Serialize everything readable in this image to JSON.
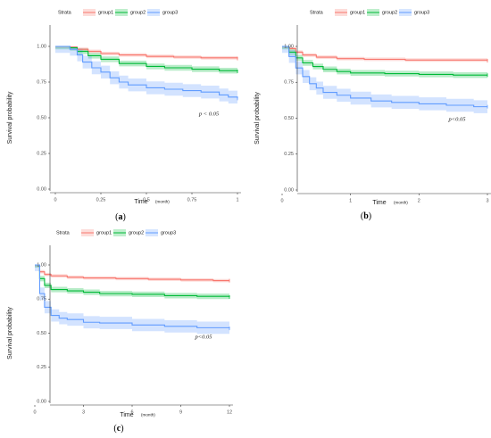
{
  "colors": {
    "group1": "#F8766D",
    "group2": "#00BA38",
    "group3": "#619CFF",
    "axis": "#333333"
  },
  "chart_data": [
    {
      "id": "a",
      "type": "line",
      "panel_label": "a",
      "xlabel": "Time",
      "xunit": "(month)",
      "ylabel": "Survival probability",
      "xlim": [
        0,
        1
      ],
      "ylim": [
        0,
        1
      ],
      "xticks": [
        0,
        0.25,
        0.5,
        0.75,
        1
      ],
      "xtick_labels": [
        "0",
        "0.25",
        "0.5",
        "0.75",
        "1"
      ],
      "yticks": [
        0,
        0.25,
        0.5,
        0.75,
        1
      ],
      "ytick_labels": [
        "0.00",
        "0.25",
        "0.50",
        "0.75",
        "1.00"
      ],
      "legend_title": "Strata",
      "legend_position": "top",
      "grid": false,
      "annotation": "p < 0.05",
      "series": [
        {
          "name": "group1",
          "color_key": "group1",
          "x": [
            0,
            0.08,
            0.12,
            0.18,
            0.25,
            0.35,
            0.5,
            0.65,
            0.8,
            1.0
          ],
          "y": [
            1.0,
            0.995,
            0.98,
            0.965,
            0.95,
            0.94,
            0.93,
            0.925,
            0.92,
            0.915
          ],
          "ci": 0.012
        },
        {
          "name": "group2",
          "color_key": "group2",
          "x": [
            0,
            0.08,
            0.12,
            0.18,
            0.25,
            0.35,
            0.5,
            0.6,
            0.75,
            0.9,
            1.0
          ],
          "y": [
            1.0,
            0.99,
            0.965,
            0.935,
            0.91,
            0.88,
            0.86,
            0.85,
            0.84,
            0.83,
            0.825
          ],
          "ci": 0.02
        },
        {
          "name": "group3",
          "color_key": "group3",
          "x": [
            0,
            0.08,
            0.12,
            0.15,
            0.2,
            0.25,
            0.3,
            0.35,
            0.4,
            0.5,
            0.6,
            0.7,
            0.8,
            0.9,
            0.95,
            1.0
          ],
          "y": [
            1.0,
            0.98,
            0.94,
            0.89,
            0.85,
            0.82,
            0.78,
            0.75,
            0.73,
            0.71,
            0.7,
            0.69,
            0.68,
            0.66,
            0.645,
            0.635
          ],
          "ci": 0.045
        }
      ]
    },
    {
      "id": "b",
      "type": "line",
      "panel_label": "b",
      "xlabel": "Time",
      "xunit": "(month)",
      "ylabel": "Survival probability",
      "xlim": [
        0,
        3
      ],
      "ylim": [
        0,
        1
      ],
      "xticks": [
        0,
        1,
        2,
        3
      ],
      "xtick_labels": [
        "0",
        "1",
        "2",
        "3"
      ],
      "yticks": [
        0,
        0.25,
        0.5,
        0.75,
        1
      ],
      "ytick_labels": [
        "0.00",
        "0.25",
        "0.50",
        "0.75",
        "1.00"
      ],
      "legend_title": "Strata",
      "legend_position": "top",
      "grid": false,
      "annotation": "p<0.05",
      "series": [
        {
          "name": "group1",
          "color_key": "group1",
          "x": [
            0,
            0.1,
            0.2,
            0.3,
            0.5,
            0.8,
            1.2,
            1.8,
            2.4,
            3.0
          ],
          "y": [
            1.0,
            0.985,
            0.96,
            0.94,
            0.925,
            0.915,
            0.91,
            0.905,
            0.905,
            0.9
          ],
          "ci": 0.012
        },
        {
          "name": "group2",
          "color_key": "group2",
          "x": [
            0,
            0.1,
            0.2,
            0.3,
            0.45,
            0.6,
            0.8,
            1.0,
            1.5,
            2.0,
            2.5,
            3.0
          ],
          "y": [
            1.0,
            0.96,
            0.92,
            0.885,
            0.86,
            0.84,
            0.825,
            0.815,
            0.81,
            0.805,
            0.8,
            0.8
          ],
          "ci": 0.02
        },
        {
          "name": "group3",
          "color_key": "group3",
          "x": [
            0,
            0.1,
            0.2,
            0.3,
            0.4,
            0.5,
            0.6,
            0.8,
            1.0,
            1.3,
            1.6,
            2.0,
            2.4,
            2.8,
            3.0
          ],
          "y": [
            1.0,
            0.93,
            0.85,
            0.79,
            0.74,
            0.71,
            0.68,
            0.66,
            0.64,
            0.62,
            0.61,
            0.6,
            0.59,
            0.58,
            0.58
          ],
          "ci": 0.045
        }
      ]
    },
    {
      "id": "c",
      "type": "line",
      "panel_label": "c",
      "xlabel": "Time",
      "xunit": "(month)",
      "ylabel": "Survival probability",
      "xlim": [
        0,
        12
      ],
      "ylim": [
        0,
        1
      ],
      "xticks": [
        0,
        3,
        6,
        9,
        12
      ],
      "xtick_labels": [
        "0",
        "3",
        "6",
        "9",
        "12"
      ],
      "yticks": [
        0,
        0.25,
        0.5,
        0.75,
        1
      ],
      "ytick_labels": [
        "0.00",
        "0.25",
        "0.50",
        "0.75",
        "1.00"
      ],
      "legend_title": "Strata",
      "legend_position": "top",
      "grid": false,
      "annotation": "p<0.05",
      "series": [
        {
          "name": "group1",
          "color_key": "group1",
          "x": [
            0,
            0.3,
            0.6,
            1.0,
            2.0,
            3.0,
            5.0,
            7.0,
            9.0,
            11.0,
            12.0
          ],
          "y": [
            1.0,
            0.95,
            0.93,
            0.92,
            0.91,
            0.905,
            0.9,
            0.895,
            0.89,
            0.885,
            0.885
          ],
          "ci": 0.012
        },
        {
          "name": "group2",
          "color_key": "group2",
          "x": [
            0,
            0.3,
            0.6,
            1.0,
            2.0,
            3.0,
            4.0,
            6.0,
            8.0,
            10.0,
            12.0
          ],
          "y": [
            1.0,
            0.9,
            0.85,
            0.82,
            0.81,
            0.8,
            0.79,
            0.785,
            0.775,
            0.77,
            0.765
          ],
          "ci": 0.02
        },
        {
          "name": "group3",
          "color_key": "group3",
          "x": [
            0,
            0.3,
            0.6,
            1.0,
            1.5,
            2.0,
            3.0,
            4.0,
            6.0,
            8.0,
            10.0,
            12.0
          ],
          "y": [
            1.0,
            0.79,
            0.69,
            0.63,
            0.61,
            0.6,
            0.58,
            0.575,
            0.56,
            0.55,
            0.54,
            0.535
          ],
          "ci": 0.045
        }
      ]
    }
  ]
}
